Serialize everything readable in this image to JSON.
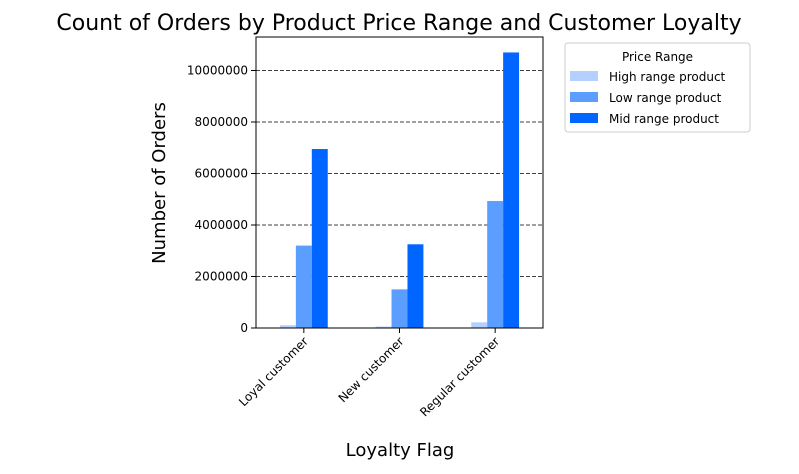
{
  "chart_data": {
    "type": "bar",
    "title": "Count of Orders by Product Price Range and Customer Loyalty",
    "xlabel": "Loyalty Flag",
    "ylabel": "Number of Orders",
    "categories": [
      "Loyal customer",
      "New customer",
      "Regular customer"
    ],
    "series": [
      {
        "name": "High range product",
        "values": [
          110000,
          55000,
          220000
        ],
        "color": "#b3d0ff"
      },
      {
        "name": "Low range product",
        "values": [
          3200000,
          1500000,
          4930000
        ],
        "color": "#5c9eff"
      },
      {
        "name": "Mid range product",
        "values": [
          6950000,
          3250000,
          10700000
        ],
        "color": "#0066ff"
      }
    ],
    "ylim": [
      0,
      11300000
    ],
    "yticks": [
      0,
      2000000,
      4000000,
      6000000,
      8000000,
      10000000
    ],
    "ytick_labels": [
      "0",
      "2000000",
      "4000000",
      "6000000",
      "8000000",
      "10000000"
    ],
    "grid": "y-dashed",
    "legend": {
      "title": "Price Range",
      "placement": "outside-top-right"
    }
  }
}
